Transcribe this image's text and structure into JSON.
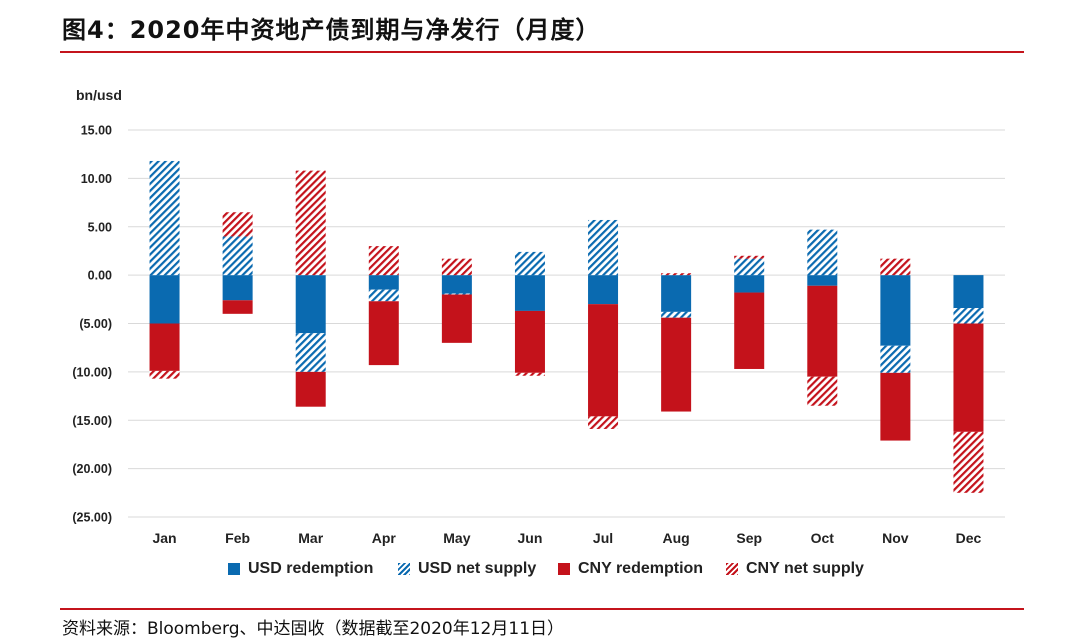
{
  "title": "图4：2020年中资地产债到期与净发行（月度）",
  "source": "资料来源：Bloomberg、中达固收（数据截至2020年12月11日）",
  "chart_data": {
    "type": "bar",
    "stacked": true,
    "unit_label": "bn/usd",
    "ylim": [
      -25,
      15
    ],
    "yticks": [
      15,
      10,
      5,
      0,
      -5,
      -10,
      -15,
      -20,
      -25
    ],
    "ytick_labels": [
      "15.00",
      "10.00",
      "5.00",
      "0.00",
      "(5.00)",
      "(10.00)",
      "(15.00)",
      "(20.00)",
      "(25.00)"
    ],
    "grid": true,
    "legend_position": "bottom",
    "categories": [
      "Jan",
      "Feb",
      "Mar",
      "Apr",
      "May",
      "Jun",
      "Jul",
      "Aug",
      "Sep",
      "Oct",
      "Nov",
      "Dec"
    ],
    "colors": {
      "usd": "#0a6ab0",
      "cny": "#c4121b"
    },
    "series": [
      {
        "name": "USD redemption",
        "color": "#0a6ab0",
        "pattern": "solid",
        "values": [
          -5.0,
          -2.6,
          -6.0,
          -1.5,
          -1.9,
          -3.7,
          -3.0,
          -3.8,
          -1.8,
          -1.1,
          -7.3,
          -3.4
        ]
      },
      {
        "name": "USD net supply",
        "color": "#0a6ab0",
        "pattern": "hatch",
        "values": [
          11.8,
          4.0,
          -4.0,
          -1.2,
          -0.1,
          2.4,
          5.7,
          -0.6,
          1.7,
          4.7,
          -2.8,
          -1.6
        ]
      },
      {
        "name": "CNY redemption",
        "color": "#c4121b",
        "pattern": "solid",
        "values": [
          -4.9,
          -1.4,
          -3.6,
          -6.6,
          -5.0,
          -6.4,
          -11.6,
          -9.7,
          -7.9,
          -9.4,
          -7.0,
          -11.2
        ]
      },
      {
        "name": "CNY net supply",
        "color": "#c4121b",
        "pattern": "hatch",
        "values": [
          -0.8,
          2.5,
          10.8,
          3.0,
          1.7,
          -0.3,
          -1.3,
          0.2,
          0.3,
          -3.0,
          1.7,
          -6.3
        ]
      }
    ]
  }
}
